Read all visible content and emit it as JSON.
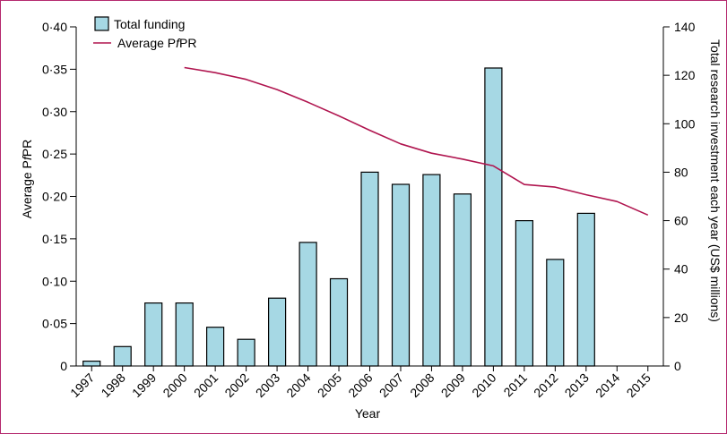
{
  "chart_data": {
    "type": "bar",
    "xlabel": "Year",
    "ylabel_left": "Average PfPR",
    "ylabel_left_parts": [
      "Average P",
      "f",
      "PR"
    ],
    "ylabel_right": "Total research investment each year (US$ millions)",
    "categories": [
      "1997",
      "1998",
      "1999",
      "2000",
      "2001",
      "2002",
      "2003",
      "2004",
      "2005",
      "2006",
      "2007",
      "2008",
      "2009",
      "2010",
      "2011",
      "2012",
      "2013",
      "2014",
      "2015"
    ],
    "left_axis": {
      "ylim": [
        0,
        0.4
      ],
      "ticks": [
        "0",
        "0·05",
        "0·10",
        "0·15",
        "0·20",
        "0·25",
        "0·30",
        "0·35",
        "0·40"
      ]
    },
    "right_axis": {
      "ylim": [
        0,
        140
      ],
      "ticks": [
        "0",
        "20",
        "40",
        "60",
        "80",
        "100",
        "120",
        "140"
      ]
    },
    "series": [
      {
        "name": "Total funding",
        "kind": "bar",
        "axis": "right",
        "color": "#a6d8e4",
        "values": [
          2,
          8,
          26,
          26,
          16,
          11,
          28,
          51,
          36,
          80,
          75,
          79,
          71,
          123,
          60,
          44,
          63,
          null,
          null
        ]
      },
      {
        "name": "Average PfPR",
        "name_parts": [
          "Average P",
          "f",
          "PR"
        ],
        "kind": "line",
        "axis": "left",
        "color": "#b0154f",
        "values": [
          null,
          null,
          null,
          0.352,
          0.346,
          0.338,
          0.326,
          0.311,
          0.295,
          0.278,
          0.262,
          0.251,
          0.244,
          0.236,
          0.214,
          0.211,
          0.202,
          0.194,
          0.178
        ]
      }
    ],
    "legend": "top-left",
    "grid": false
  }
}
